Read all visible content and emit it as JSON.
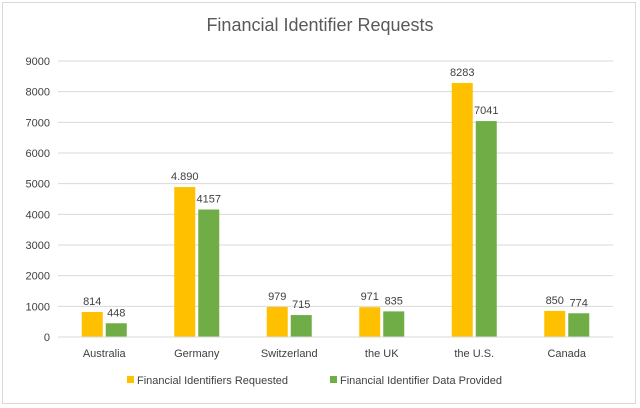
{
  "chart_data": {
    "type": "bar",
    "title": "Financial Identifier Requests",
    "categories": [
      "Australia",
      "Germany",
      "Switzerland",
      "the UK",
      "the U.S.",
      "Canada"
    ],
    "series": [
      {
        "name": "Financial Identifiers Requested",
        "color": "#FFC000",
        "values": [
          814,
          4890,
          979,
          971,
          8283,
          850
        ],
        "labels": [
          "814",
          "4.890",
          "979",
          "971",
          "8283",
          "850"
        ]
      },
      {
        "name": "Financial Identifier Data Provided",
        "color": "#70AD47",
        "values": [
          448,
          4157,
          715,
          835,
          7041,
          774
        ],
        "labels": [
          "448",
          "4157",
          "715",
          "835",
          "7041",
          "774"
        ]
      }
    ],
    "yticks": [
      "0",
      "1000",
      "2000",
      "3000",
      "4000",
      "5000",
      "6000",
      "7000",
      "8000",
      "9000"
    ],
    "ylim": [
      0,
      9000
    ],
    "grid": true,
    "legend": "bottom"
  }
}
